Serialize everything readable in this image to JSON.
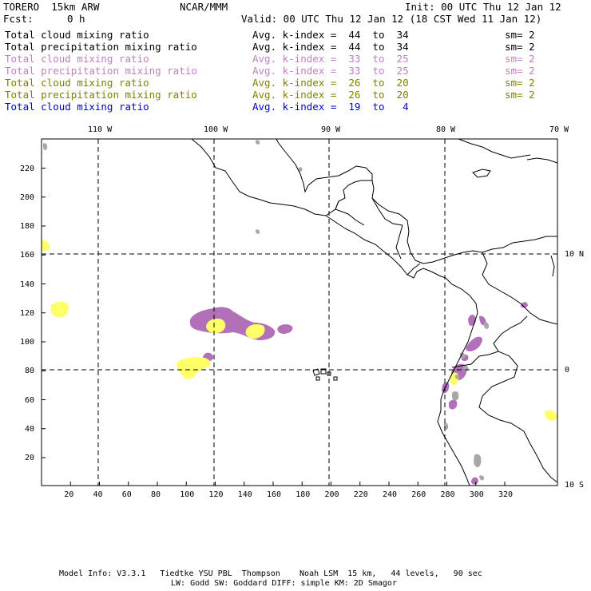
{
  "header": {
    "model": "TORERO  15km ARW",
    "org": "NCAR/MMM",
    "init": "Init: 00 UTC Thu 12 Jan 12",
    "fcst_label": "Fcst:",
    "fcst_value": "0 h",
    "valid": "Valid: 00 UTC Thu 12 Jan 12 (18 CST Wed 11 Jan 12)"
  },
  "legend": [
    {
      "field": "Total cloud mixing ratio",
      "kindex": "Avg. k-index =  44  to  34",
      "sm": "sm= 2",
      "color": "#000000"
    },
    {
      "field": "Total precipitation mixing ratio",
      "kindex": "Avg. k-index =  44  to  34",
      "sm": "sm= 2",
      "color": "#000000"
    },
    {
      "field": "Total cloud mixing ratio",
      "kindex": "Avg. k-index =  33  to  25",
      "sm": "sm= 2",
      "color": "#c080c0"
    },
    {
      "field": "Total precipitation mixing ratio",
      "kindex": "Avg. k-index =  33  to  25",
      "sm": "sm= 2",
      "color": "#c080c0"
    },
    {
      "field": "Total cloud mixing ratio",
      "kindex": "Avg. k-index =  26  to  20",
      "sm": "sm= 2",
      "color": "#808000"
    },
    {
      "field": "Total precipitation mixing ratio",
      "kindex": "Avg. k-index =  26  to  20",
      "sm": "sm= 2",
      "color": "#808000"
    },
    {
      "field": "Total cloud mixing ratio",
      "kindex": "Avg. k-index =  19  to   4",
      "sm": "",
      "color": "#0000cc"
    }
  ],
  "map": {
    "lon_labels": [
      "110 W",
      "100 W",
      "90 W",
      "80 W",
      "70 W"
    ],
    "lat_labels": [
      "10 N",
      "0",
      "10 S"
    ],
    "x_ticks": [
      "20",
      "40",
      "60",
      "80",
      "100",
      "120",
      "140",
      "160",
      "180",
      "200",
      "220",
      "240",
      "260",
      "280",
      "300",
      "320"
    ],
    "y_ticks": [
      "220",
      "200",
      "180",
      "160",
      "140",
      "120",
      "100",
      "80",
      "60",
      "40",
      "20"
    ],
    "colors": {
      "purple": "#b270b8",
      "yellow": "#ffff66",
      "gray": "#a8a8a8",
      "grid": "#000000"
    }
  },
  "footer": {
    "line1": "Model Info: V3.3.1   Tiedtke YSU PBL  Thompson    Noah LSM  15 km,   44 levels,   90 sec",
    "line2": "LW: Godd SW: Goddard DIFF: simple KM: 2D Smagor"
  }
}
